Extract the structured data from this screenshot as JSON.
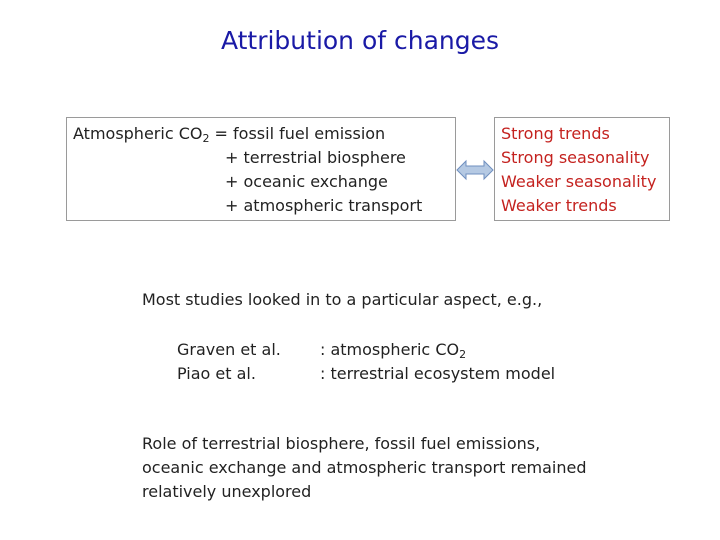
{
  "slide": {
    "title": "Attribution of changes",
    "equation": {
      "lhs_prefix": "Atmospheric CO",
      "lhs_sub": "2",
      "lhs_suffix": " = fossil fuel emission",
      "terms": [
        "+ terrestrial biosphere",
        "+ oceanic exchange",
        "+ atmospheric transport"
      ]
    },
    "trends": [
      "Strong trends",
      "Strong seasonality",
      "Weaker seasonality",
      "Weaker trends"
    ],
    "studies_intro": "Most studies looked in to a particular aspect, e.g.,",
    "studies": [
      {
        "name": "Graven et al.",
        "focus_prefix": ": atmospheric CO",
        "focus_sub": "2"
      },
      {
        "name": "Piao et al.",
        "focus_prefix": ": terrestrial ecosystem model",
        "focus_sub": ""
      }
    ],
    "conclusion": [
      "Role of terrestrial biosphere, fossil fuel emissions,",
      "oceanic exchange and atmospheric transport remained",
      "relatively unexplored"
    ],
    "colors": {
      "title": "#1a1aa6",
      "highlight": "#c4221f",
      "arrow": "#b5c9e3"
    }
  }
}
